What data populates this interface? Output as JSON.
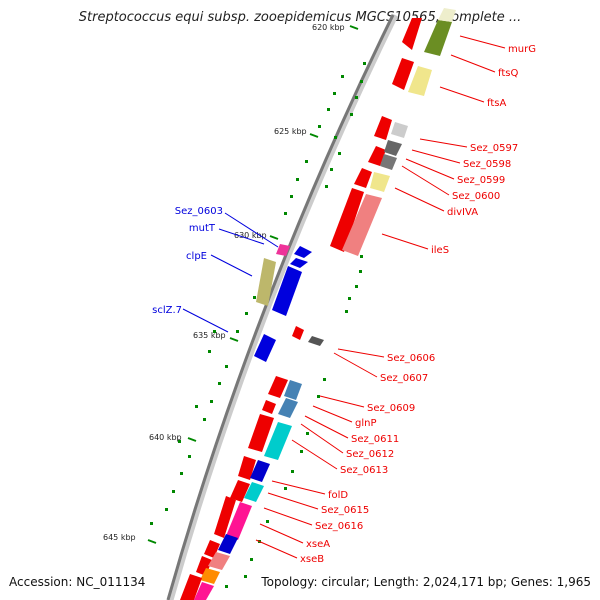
{
  "title": "Streptococcus equi subsp. zooepidemicus MGCS10565, complete ...",
  "footer": {
    "accession": "Accession: NC_011134",
    "stats": "Topology: circular; Length: 2,024,171 bp; Genes: 1,965"
  },
  "ticks": [
    "620 kbp",
    "625 kbp",
    "630 kbp",
    "635 kbp",
    "640 kbp",
    "645 kbp"
  ],
  "genes_right": [
    "murG",
    "ftsQ",
    "ftsA",
    "Sez_0597",
    "Sez_0598",
    "Sez_0599",
    "Sez_0600",
    "divIVA",
    "ileS",
    "Sez_0606",
    "Sez_0607",
    "Sez_0609",
    "glnP",
    "Sez_0611",
    "Sez_0612",
    "Sez_0613",
    "folD",
    "Sez_0615",
    "Sez_0616",
    "xseA",
    "xseB"
  ],
  "genes_left": [
    "Sez_0603",
    "mutT",
    "clpE",
    "sclZ.7"
  ],
  "colors": {
    "forward_strand": "#ee0000",
    "reverse_strand": "#0000dd",
    "backbone": "#888888",
    "tick_mark": "#008800"
  }
}
